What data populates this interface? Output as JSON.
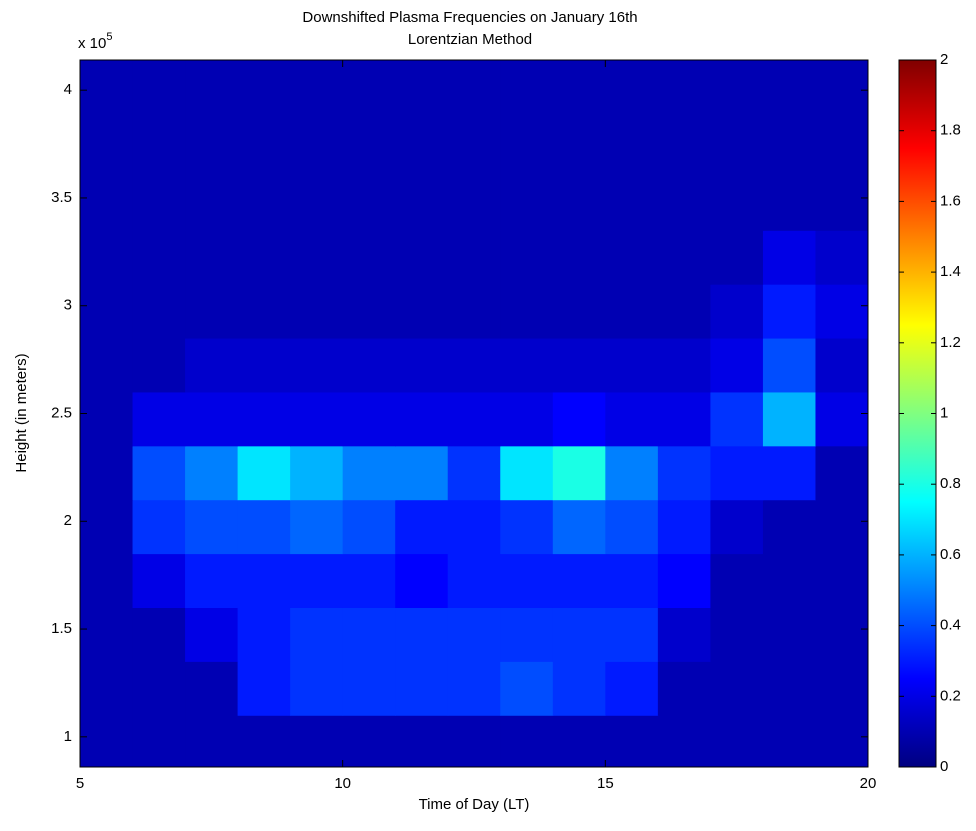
{
  "chart_data": {
    "type": "heatmap",
    "title": "Downshifted Plasma Frequencies on January 16th",
    "subtitle": "Lorentzian Method",
    "x_label": "Time of Day (LT)",
    "y_label": "Height (in meters)",
    "y_multiplier": {
      "base": "x 10",
      "exponent": "5"
    },
    "colormap": "jet",
    "x_edges": [
      5,
      6,
      7,
      8,
      9,
      10,
      11,
      12,
      13,
      14,
      15,
      16,
      17,
      18,
      19,
      20
    ],
    "y_edges": [
      0.86,
      1.1,
      1.35,
      1.6,
      1.85,
      2.1,
      2.35,
      2.6,
      2.85,
      3.1,
      3.35,
      3.6,
      3.85,
      4.14
    ],
    "z": [
      [
        0.1,
        0.1,
        0.1,
        0.1,
        0.1,
        0.1,
        0.1,
        0.1,
        0.1,
        0.1,
        0.1,
        0.1,
        0.1,
        0.1,
        0.1
      ],
      [
        0.1,
        0.1,
        0.1,
        0.3,
        0.35,
        0.35,
        0.35,
        0.35,
        0.4,
        0.35,
        0.3,
        0.1,
        0.1,
        0.1,
        0.1
      ],
      [
        0.1,
        0.1,
        0.2,
        0.3,
        0.35,
        0.35,
        0.35,
        0.35,
        0.35,
        0.35,
        0.35,
        0.15,
        0.1,
        0.1,
        0.1
      ],
      [
        0.1,
        0.2,
        0.3,
        0.3,
        0.3,
        0.3,
        0.25,
        0.3,
        0.3,
        0.3,
        0.3,
        0.25,
        0.1,
        0.1,
        0.1
      ],
      [
        0.1,
        0.35,
        0.4,
        0.4,
        0.45,
        0.4,
        0.3,
        0.3,
        0.35,
        0.45,
        0.4,
        0.3,
        0.15,
        0.1,
        0.1
      ],
      [
        0.1,
        0.4,
        0.5,
        0.7,
        0.6,
        0.5,
        0.5,
        0.35,
        0.7,
        0.8,
        0.5,
        0.35,
        0.3,
        0.3,
        0.1
      ],
      [
        0.1,
        0.2,
        0.2,
        0.2,
        0.2,
        0.2,
        0.2,
        0.2,
        0.2,
        0.25,
        0.2,
        0.2,
        0.35,
        0.6,
        0.2
      ],
      [
        0.1,
        0.1,
        0.15,
        0.15,
        0.15,
        0.15,
        0.15,
        0.15,
        0.15,
        0.15,
        0.15,
        0.15,
        0.2,
        0.4,
        0.15
      ],
      [
        0.1,
        0.1,
        0.1,
        0.1,
        0.1,
        0.1,
        0.1,
        0.1,
        0.1,
        0.1,
        0.1,
        0.1,
        0.15,
        0.3,
        0.2
      ],
      [
        0.1,
        0.1,
        0.1,
        0.1,
        0.1,
        0.1,
        0.1,
        0.1,
        0.1,
        0.1,
        0.1,
        0.1,
        0.1,
        0.2,
        0.15
      ],
      [
        0.1,
        0.1,
        0.1,
        0.1,
        0.1,
        0.1,
        0.1,
        0.1,
        0.1,
        0.1,
        0.1,
        0.1,
        0.1,
        0.1,
        0.1
      ],
      [
        0.1,
        0.1,
        0.1,
        0.1,
        0.1,
        0.1,
        0.1,
        0.1,
        0.1,
        0.1,
        0.1,
        0.1,
        0.1,
        0.1,
        0.1
      ],
      [
        0.1,
        0.1,
        0.1,
        0.1,
        0.1,
        0.1,
        0.1,
        0.1,
        0.1,
        0.1,
        0.1,
        0.1,
        0.1,
        0.1,
        0.1
      ]
    ],
    "xlim": [
      5,
      20
    ],
    "xticks": [
      5,
      10,
      15,
      20
    ],
    "ylim": [
      0.86,
      4.14
    ],
    "yticks": [
      1,
      1.5,
      2,
      2.5,
      3,
      3.5,
      4
    ],
    "clim": [
      0,
      2
    ],
    "cticks": [
      0,
      0.2,
      0.4,
      0.6,
      0.8,
      1,
      1.2,
      1.4,
      1.6,
      1.8,
      2
    ]
  }
}
